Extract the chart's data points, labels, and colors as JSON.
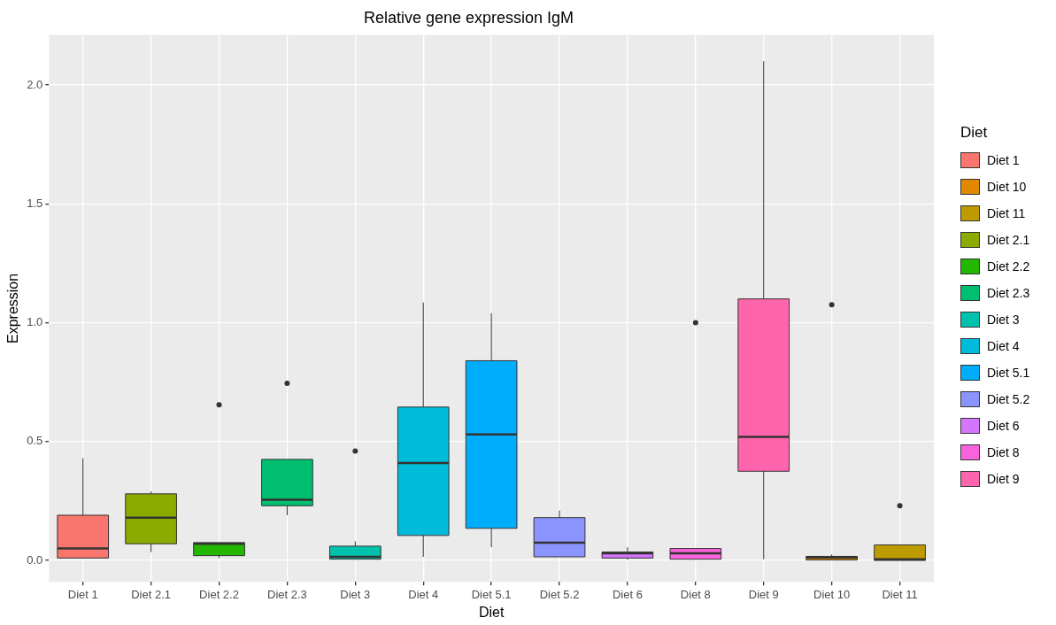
{
  "chart_data": {
    "type": "box",
    "title": "Relative gene expression IgM",
    "xlabel": "Diet",
    "ylabel": "Expression",
    "legend_title": "Diet",
    "legend": "right",
    "grid": true,
    "categories": [
      "Diet 1",
      "Diet 2.1",
      "Diet 2.2",
      "Diet 2.3",
      "Diet 3",
      "Diet 4",
      "Diet 5.1",
      "Diet 5.2",
      "Diet 6",
      "Diet 8",
      "Diet 9",
      "Diet 10",
      "Diet 11"
    ],
    "ylim": [
      -0.09,
      2.21
    ],
    "yticks": [
      {
        "value": 0,
        "label": "0.0"
      },
      {
        "value": 0.5,
        "label": "0.5"
      },
      {
        "value": 1,
        "label": "1.0"
      },
      {
        "value": 1.5,
        "label": "1.5"
      },
      {
        "value": 2,
        "label": "2.0"
      }
    ],
    "series": [
      {
        "name": "Diet 1",
        "color": "#f8766d",
        "x": [
          "Diet 1"
        ],
        "boxes": [
          {
            "low": 0.01,
            "q1": 0.01,
            "median": 0.05,
            "q3": 0.19,
            "high": 0.43
          }
        ]
      },
      {
        "name": "Diet 10",
        "color": "#e18a00",
        "x": [
          "Diet 10"
        ],
        "boxes": [
          {
            "low": 0.002,
            "q1": 0.002,
            "median": 0.012,
            "q3": 0.017,
            "high": 0.025,
            "outliers": [
              1.075
            ]
          }
        ]
      },
      {
        "name": "Diet 11",
        "color": "#be9c00",
        "x": [
          "Diet 11"
        ],
        "boxes": [
          {
            "low": 0,
            "q1": 0,
            "median": 0.005,
            "q3": 0.065,
            "high": 0.065,
            "outliers": [
              0.23
            ]
          }
        ]
      },
      {
        "name": "Diet 2.1",
        "color": "#8cab00",
        "x": [
          "Diet 2.1"
        ],
        "boxes": [
          {
            "low": 0.035,
            "q1": 0.07,
            "median": 0.18,
            "q3": 0.28,
            "high": 0.29
          }
        ]
      },
      {
        "name": "Diet 2.2",
        "color": "#24b700",
        "x": [
          "Diet 2.2"
        ],
        "boxes": [
          {
            "low": 0.01,
            "q1": 0.02,
            "median": 0.07,
            "q3": 0.075,
            "high": 0.075,
            "outliers": [
              0.655
            ]
          }
        ]
      },
      {
        "name": "Diet 2.3",
        "color": "#00be70",
        "x": [
          "Diet 2.3"
        ],
        "boxes": [
          {
            "low": 0.19,
            "q1": 0.23,
            "median": 0.255,
            "q3": 0.425,
            "high": 0.425,
            "outliers": [
              0.745
            ]
          }
        ]
      },
      {
        "name": "Diet 3",
        "color": "#00c1ab",
        "x": [
          "Diet 3"
        ],
        "boxes": [
          {
            "low": 0.005,
            "q1": 0.005,
            "median": 0.015,
            "q3": 0.06,
            "high": 0.08,
            "outliers": [
              0.46
            ]
          }
        ]
      },
      {
        "name": "Diet 4",
        "color": "#00bbda",
        "x": [
          "Diet 4"
        ],
        "boxes": [
          {
            "low": 0.015,
            "q1": 0.105,
            "median": 0.41,
            "q3": 0.645,
            "high": 1.085
          }
        ]
      },
      {
        "name": "Diet 5.1",
        "color": "#00acfc",
        "x": [
          "Diet 5.1"
        ],
        "boxes": [
          {
            "low": 0.055,
            "q1": 0.135,
            "median": 0.53,
            "q3": 0.84,
            "high": 1.04
          }
        ]
      },
      {
        "name": "Diet 5.2",
        "color": "#8b93ff",
        "x": [
          "Diet 5.2"
        ],
        "boxes": [
          {
            "low": 0.015,
            "q1": 0.015,
            "median": 0.075,
            "q3": 0.18,
            "high": 0.21
          }
        ]
      },
      {
        "name": "Diet 6",
        "color": "#d575fe",
        "x": [
          "Diet 6"
        ],
        "boxes": [
          {
            "low": 0.003,
            "q1": 0.01,
            "median": 0.03,
            "q3": 0.035,
            "high": 0.055
          }
        ]
      },
      {
        "name": "Diet 8",
        "color": "#f962dd",
        "x": [
          "Diet 8"
        ],
        "boxes": [
          {
            "low": 0.005,
            "q1": 0.005,
            "median": 0.03,
            "q3": 0.05,
            "high": 0.05,
            "outliers": [
              1.0
            ]
          }
        ]
      },
      {
        "name": "Diet 9",
        "color": "#ff65ac",
        "x": [
          "Diet 9"
        ],
        "boxes": [
          {
            "low": 0.005,
            "q1": 0.375,
            "median": 0.52,
            "q3": 1.1,
            "high": 2.1
          }
        ]
      }
    ]
  }
}
